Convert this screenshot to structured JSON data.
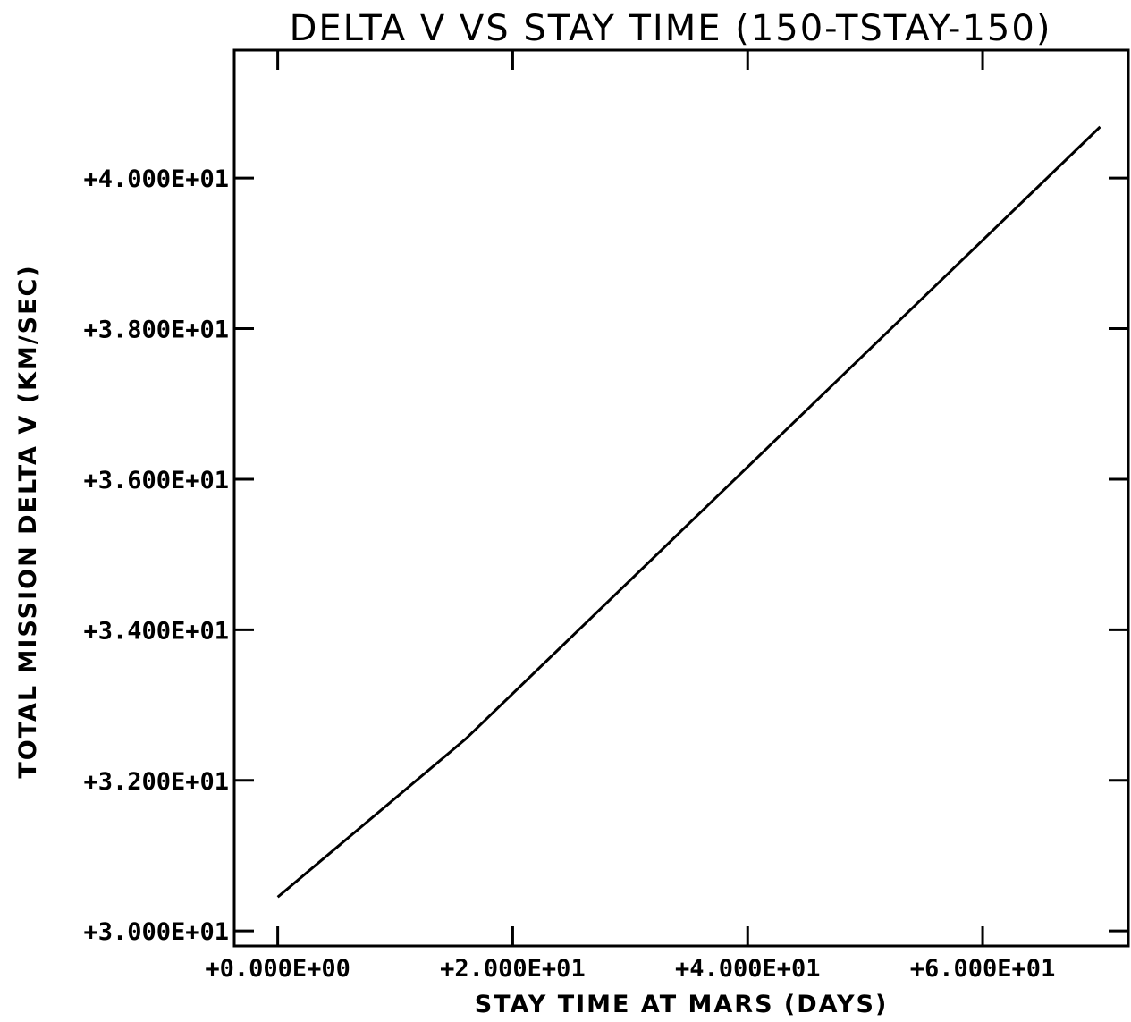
{
  "chart_data": {
    "type": "line",
    "title": "DELTA V VS STAY TIME (150-TSTAY-150)",
    "xlabel": "STAY TIME AT MARS (DAYS)",
    "ylabel": "TOTAL MISSION DELTA V (KM/SEC)",
    "xlim": [
      -3.7,
      72.4
    ],
    "ylim": [
      29.8,
      41.7
    ],
    "x_ticks": [
      0,
      20,
      40,
      60
    ],
    "x_tick_labels": [
      "+0.000E+00",
      "+2.000E+01",
      "+4.000E+01",
      "+6.000E+01"
    ],
    "y_ticks": [
      30,
      32,
      34,
      36,
      38,
      40
    ],
    "y_tick_labels": [
      "+3.000E+01",
      "+3.200E+01",
      "+3.400E+01",
      "+3.600E+01",
      "+3.800E+01",
      "+4.000E+01"
    ],
    "grid": false,
    "series": [
      {
        "x": [
          0,
          16,
          70
        ],
        "y": [
          30.45,
          32.55,
          40.68
        ]
      }
    ]
  }
}
